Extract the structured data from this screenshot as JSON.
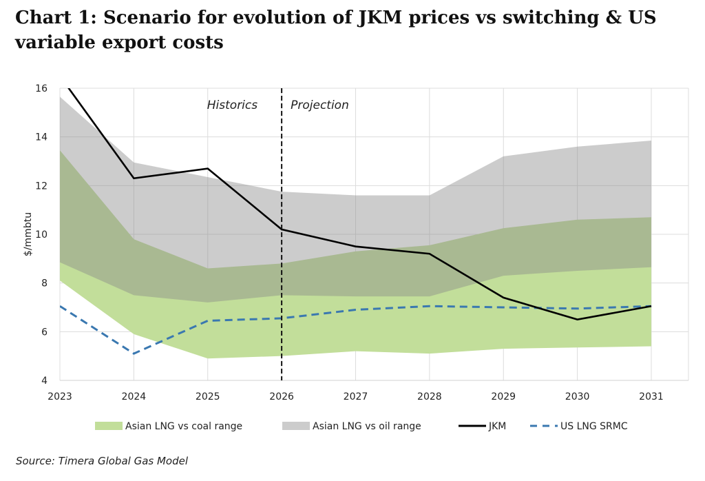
{
  "title": "Chart 1: Scenario for evolution of JKM prices vs switching & US variable export costs",
  "source": "Source: Timera Global Gas Model",
  "chart_data": {
    "type": "area",
    "title": "Chart 1: Scenario for evolution of JKM prices vs switching & US variable export costs",
    "xlabel": "",
    "ylabel": "$/mmbtu",
    "x": [
      2023,
      2024,
      2025,
      2026,
      2027,
      2028,
      2029,
      2030,
      2031
    ],
    "xlim": [
      2023,
      2031
    ],
    "ylim": [
      4,
      16
    ],
    "yticks": [
      4,
      6,
      8,
      10,
      12,
      14,
      16
    ],
    "grid": true,
    "legend_position": "bottom",
    "annotations": {
      "divider_x": 2026,
      "left_label": "Historics",
      "right_label": "Projection"
    },
    "series": [
      {
        "name": "Asian LNG vs coal range",
        "kind": "band",
        "color": "#c2de9a",
        "low": [
          8.1,
          5.9,
          4.9,
          5.0,
          5.2,
          5.1,
          5.3,
          5.35,
          5.4
        ],
        "high": [
          13.45,
          9.8,
          8.6,
          8.8,
          9.3,
          9.55,
          10.25,
          10.6,
          10.7
        ]
      },
      {
        "name": "Asian LNG vs oil range",
        "kind": "band",
        "color": "#cccccc",
        "low": [
          8.85,
          7.5,
          7.2,
          7.5,
          7.45,
          7.45,
          8.3,
          8.5,
          8.65
        ],
        "high": [
          15.65,
          12.95,
          12.35,
          11.75,
          11.6,
          11.6,
          13.2,
          13.6,
          13.85
        ]
      },
      {
        "name": "JKM",
        "kind": "line",
        "color": "#000000",
        "values": [
          16.5,
          12.3,
          12.7,
          10.2,
          9.5,
          9.2,
          7.4,
          6.5,
          7.05
        ]
      },
      {
        "name": "US LNG SRMC",
        "kind": "dashed-line",
        "color": "#3a78b0",
        "values": [
          7.05,
          5.1,
          6.45,
          6.55,
          6.9,
          7.05,
          7.0,
          6.95,
          7.05
        ]
      }
    ]
  }
}
